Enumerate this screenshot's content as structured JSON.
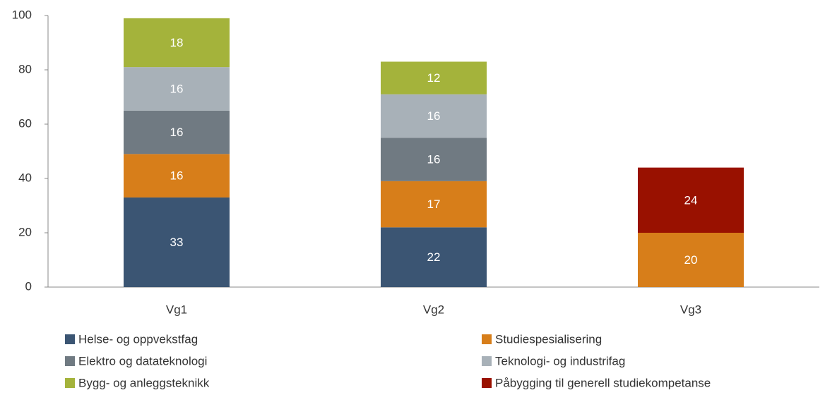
{
  "chart_data": {
    "type": "stacked_bar",
    "categories": [
      "Vg1",
      "Vg2",
      "Vg3"
    ],
    "series": [
      {
        "name": "Helse- og oppvekstfag",
        "color": "#3b5573",
        "values": [
          33,
          22,
          null
        ]
      },
      {
        "name": "Studiespesialisering",
        "color": "#d77e1a",
        "values": [
          16,
          17,
          20
        ]
      },
      {
        "name": "Elektro og datateknologi",
        "color": "#707a82",
        "values": [
          16,
          16,
          null
        ]
      },
      {
        "name": "Teknologi- og industrifag",
        "color": "#a8b1b8",
        "values": [
          16,
          16,
          null
        ]
      },
      {
        "name": "Bygg- og anleggsteknikk",
        "color": "#a4b33b",
        "values": [
          18,
          12,
          null
        ]
      },
      {
        "name": "Påbygging til generell studiekompetanse",
        "color": "#991100",
        "values": [
          null,
          null,
          24
        ]
      }
    ],
    "ylim": [
      0,
      100
    ],
    "yticks": [
      0,
      20,
      40,
      60,
      80,
      100
    ],
    "grid": false,
    "legend": "bottom"
  }
}
